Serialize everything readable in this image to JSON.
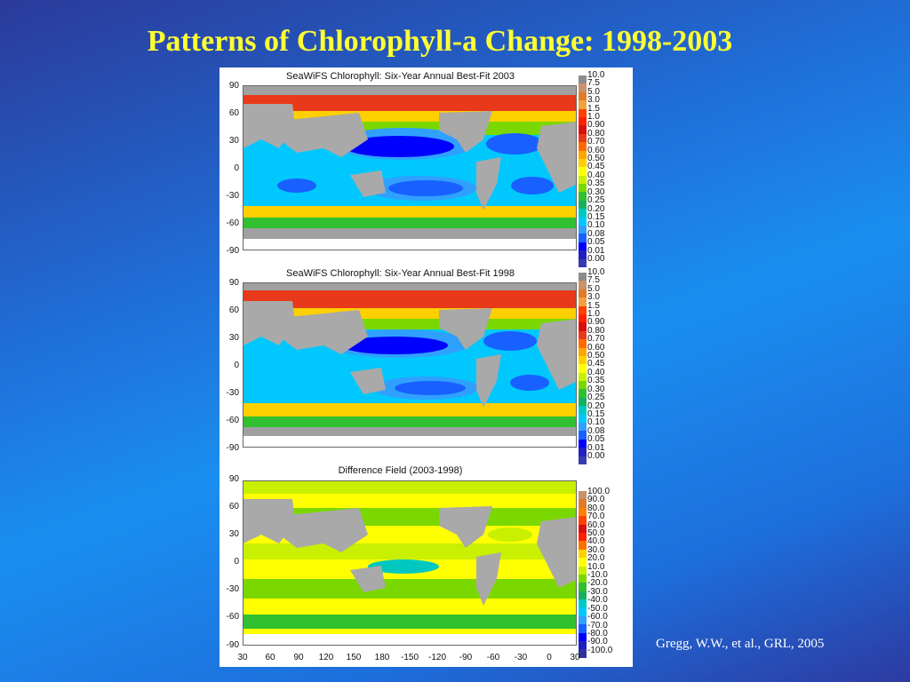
{
  "slide": {
    "title": "Patterns of Chlorophyll-a Change: 1998-2003",
    "citation": "Gregg, W.W., et al., GRL, 2005"
  },
  "panels": [
    {
      "id": "p2003",
      "title": "SeaWiFS Chlorophyll: Six-Year Annual Best-Fit 2003"
    },
    {
      "id": "p1998",
      "title": "SeaWiFS Chlorophyll: Six-Year Annual Best-Fit 1998"
    },
    {
      "id": "pdiff",
      "title": "Difference Field (2003-1998)"
    }
  ],
  "y_ticks": [
    "90",
    "60",
    "30",
    "0",
    "-30",
    "-60",
    "-90"
  ],
  "x_ticks": [
    "30",
    "60",
    "90",
    "120",
    "150",
    "180",
    "-150",
    "-120",
    "-90",
    "-60",
    "-30",
    "0",
    "30"
  ],
  "chl_scale": [
    "10.0",
    "7.5",
    "5.0",
    "3.0",
    "1.5",
    "1.0",
    "0.90",
    "0.80",
    "0.70",
    "0.60",
    "0.50",
    "0.45",
    "0.40",
    "0.35",
    "0.30",
    "0.25",
    "0.20",
    "0.15",
    "0.10",
    "0.08",
    "0.05",
    "0.01",
    "0.00"
  ],
  "diff_scale": [
    "100.0",
    "90.0",
    "80.0",
    "70.0",
    "60.0",
    "50.0",
    "40.0",
    "30.0",
    "20.0",
    "10.0",
    "-10.0",
    "-20.0",
    "-30.0",
    "-40.0",
    "-50.0",
    "-60.0",
    "-70.0",
    "-80.0",
    "-90.0",
    "-100.0"
  ],
  "colors": {
    "chl_bar": [
      "#8c8c8c",
      "#c8926a",
      "#e07b2a",
      "#f0a040",
      "#ff4000",
      "#ff2000",
      "#d81010",
      "#e83a1a",
      "#ff6a00",
      "#ffa500",
      "#ffd000",
      "#ffff00",
      "#c8f000",
      "#7ad800",
      "#30c030",
      "#18b060",
      "#00c8c0",
      "#00c8ff",
      "#30a0ff",
      "#1860ff",
      "#0000ff",
      "#2020c0",
      "#3a3ab0"
    ],
    "diff_bar": [
      "#c8926a",
      "#e07b2a",
      "#ff8000",
      "#ff4000",
      "#d81010",
      "#ff2000",
      "#ff7000",
      "#ffd000",
      "#ffff00",
      "#c8f000",
      "#7ad800",
      "#30c030",
      "#18b060",
      "#00c8c0",
      "#00c8ff",
      "#30a0ff",
      "#1860ff",
      "#0000ff",
      "#2020c0",
      "#3030a0"
    ]
  }
}
